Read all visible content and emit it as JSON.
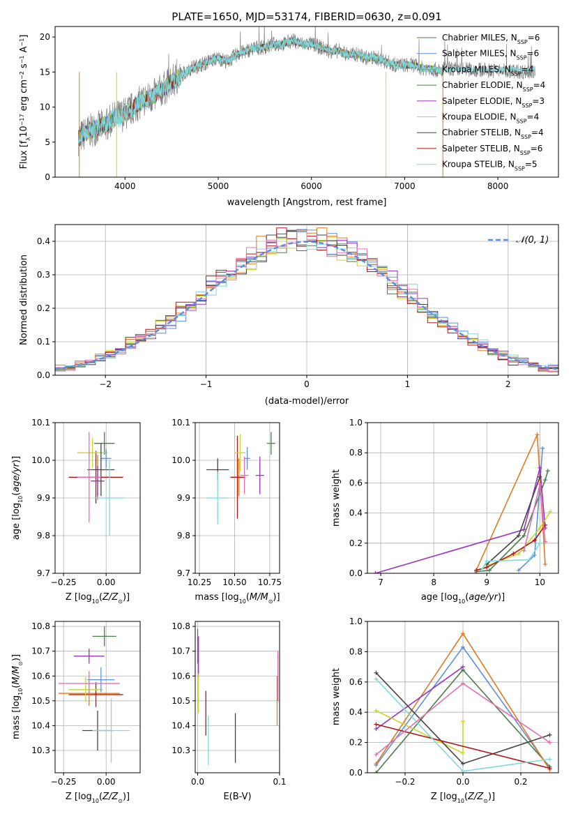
{
  "chart_data": [
    {
      "type": "line",
      "title": "PLATE=1650, MJD=53174, FIBERID=0630, z=0.091",
      "xlabel": "wavelength [Angstrom, rest frame]",
      "ylabel": "Flux [fλ10⁻¹⁷ erg cm⁻² s⁻¹ A⁻¹]",
      "xlim": [
        3250,
        8650
      ],
      "ylim": [
        0,
        21.5
      ],
      "xticks": [
        "4000",
        "5000",
        "6000",
        "7000",
        "8000"
      ],
      "yticks": [
        "0",
        "5",
        "10",
        "15",
        "20"
      ],
      "legend_placement": "top-right",
      "series": [
        {
          "name": "Chabrier MILES, N_SSP=6",
          "color": "#4a7d4a"
        },
        {
          "name": "Salpeter MILES, N_SSP=6",
          "color": "#5b8fe0"
        },
        {
          "name": "Kroupa MILES, N_SSP=4",
          "color": "#e07a20"
        },
        {
          "name": "Chabrier ELODIE, N_SSP=4",
          "color": "#4a7d4a"
        },
        {
          "name": "Salpeter ELODIE, N_SSP=3",
          "color": "#9b30c0"
        },
        {
          "name": "Kroupa ELODIE, N_SSP=4",
          "color": "#c8d62a"
        },
        {
          "name": "Chabrier STELIB, N_SSP=4",
          "color": "#444444"
        },
        {
          "name": "Salpeter STELIB, N_SSP=6",
          "color": "#b01515"
        },
        {
          "name": "Kroupa STELIB, N_SSP=5",
          "color": "#80d8d8"
        }
      ],
      "data_spectrum_x": [
        3500,
        3600,
        3700,
        3800,
        3900,
        4000,
        4100,
        4200,
        4300,
        4400,
        4500,
        4600,
        4700,
        4800,
        4900,
        5000,
        5100,
        5200,
        5300,
        5400,
        5500,
        5600,
        5700,
        5800,
        5900,
        6000,
        6100,
        6200,
        6300,
        6400,
        6500,
        6600,
        6700,
        6800,
        6900,
        7000,
        7100,
        7200,
        7300,
        7400
      ],
      "data_spectrum_y": [
        5.5,
        6.5,
        7,
        7.5,
        8.5,
        9,
        10,
        11,
        11.5,
        12.5,
        13.5,
        14.5,
        15.5,
        16,
        16.5,
        17,
        16.5,
        17.5,
        18,
        18.5,
        18.5,
        19,
        19,
        19.5,
        19,
        19,
        18.5,
        18,
        18,
        17.5,
        17.5,
        17,
        17,
        16.5,
        16,
        16,
        16,
        15.5,
        15.5,
        15
      ]
    },
    {
      "type": "histogram",
      "xlabel": "(data-model)/error",
      "ylabel": "Normed distribution",
      "xlim": [
        -2.5,
        2.5
      ],
      "ylim": [
        0,
        0.45
      ],
      "xticks": [
        "−2",
        "−1",
        "0",
        "1",
        "2"
      ],
      "yticks": [
        "0.0",
        "0.1",
        "0.2",
        "0.3",
        "0.4"
      ],
      "legend": "𝒩(0, 1)",
      "legend_placement": "top-right",
      "bin_width": 0.1
    },
    {
      "type": "scatter",
      "xlabel": "Z [log₁₀(Z/Z⊙)]",
      "ylabel": "age  [log₁₀(age/yr)]",
      "xlim": [
        -0.3,
        0.2
      ],
      "ylim": [
        9.7,
        10.1
      ],
      "xticks": [
        "−0.25",
        "0.00"
      ],
      "yticks": [
        "9.7",
        "9.8",
        "9.9",
        "10.0",
        "10.1"
      ],
      "points": [
        {
          "x": -0.01,
          "y": 10.045,
          "xerr": 0.06,
          "yerr": 0.03,
          "color": "#4a7d4a"
        },
        {
          "x": -0.05,
          "y": 9.955,
          "xerr": 0.09,
          "yerr": 0.06,
          "color": "#e07a20"
        },
        {
          "x": -0.06,
          "y": 9.955,
          "xerr": 0.16,
          "yerr": 0.07,
          "color": "#b01515"
        },
        {
          "x": -0.08,
          "y": 10.02,
          "xerr": 0.09,
          "yerr": 0.04,
          "color": "#c8d62a"
        },
        {
          "x": -0.05,
          "y": 9.945,
          "xerr": 0.04,
          "yerr": 0.04,
          "color": "#9b30c0"
        },
        {
          "x": 0.0,
          "y": 10.005,
          "xerr": 0.03,
          "yerr": 0.025,
          "color": "#5b8fe0"
        },
        {
          "x": -0.03,
          "y": 9.975,
          "xerr": 0.08,
          "yerr": 0.07,
          "color": "#444444"
        },
        {
          "x": 0.02,
          "y": 9.9,
          "xerr": 0.09,
          "yerr": 0.1,
          "color": "#80d8d8"
        },
        {
          "x": -0.1,
          "y": 9.955,
          "xerr": 0.07,
          "yerr": 0.12,
          "color": "#e46fb0"
        }
      ]
    },
    {
      "type": "scatter",
      "xlabel": "mass [log₁₀(M/M⊙)]",
      "xlim": [
        10.22,
        10.82
      ],
      "ylim": [
        9.7,
        10.1
      ],
      "xticks": [
        "10.25",
        "10.50",
        "10.75"
      ],
      "yticks": [
        "9.7",
        "9.8",
        "9.9",
        "10.0",
        "10.1"
      ],
      "points": [
        {
          "x": 10.76,
          "y": 10.045,
          "xerr": 0.03,
          "yerr": 0.03,
          "color": "#4a7d4a"
        },
        {
          "x": 10.53,
          "y": 9.955,
          "xerr": 0.05,
          "yerr": 0.05,
          "color": "#e07a20"
        },
        {
          "x": 10.52,
          "y": 9.955,
          "xerr": 0.05,
          "yerr": 0.11,
          "color": "#b01515"
        },
        {
          "x": 10.54,
          "y": 10.02,
          "xerr": 0.04,
          "yerr": 0.05,
          "color": "#c8d62a"
        },
        {
          "x": 10.68,
          "y": 9.96,
          "xerr": 0.03,
          "yerr": 0.05,
          "color": "#9b30c0"
        },
        {
          "x": 10.59,
          "y": 10.005,
          "xerr": 0.02,
          "yerr": 0.03,
          "color": "#5b8fe0"
        },
        {
          "x": 10.38,
          "y": 9.975,
          "xerr": 0.08,
          "yerr": 0.03,
          "color": "#444444"
        },
        {
          "x": 10.38,
          "y": 9.9,
          "xerr": 0.08,
          "yerr": 0.07,
          "color": "#80d8d8"
        },
        {
          "x": 10.57,
          "y": 9.96,
          "xerr": 0.03,
          "yerr": 0.05,
          "color": "#e46fb0"
        }
      ]
    },
    {
      "type": "line",
      "xlabel": "age  [log₁₀(age/yr)]",
      "ylabel": "mass weight",
      "xlim": [
        6.75,
        10.35
      ],
      "ylim": [
        0,
        1
      ],
      "xticks": [
        "7",
        "8",
        "9",
        "10"
      ],
      "yticks": [
        "0.0",
        "0.2",
        "0.4",
        "0.6",
        "0.8",
        "1.0"
      ],
      "series": [
        {
          "x": [
            8.8,
            9.05,
            9.7,
            10.1,
            10.15
          ],
          "y": [
            0.01,
            0.02,
            0.25,
            0.62,
            0.68
          ],
          "color": "#4a7d4a"
        },
        {
          "x": [
            9.6,
            9.9,
            10.05
          ],
          "y": [
            0.02,
            0.12,
            0.83
          ],
          "color": "#5b8fe0"
        },
        {
          "x": [
            8.8,
            9.95,
            10.1
          ],
          "y": [
            0.02,
            0.92,
            0.06
          ],
          "color": "#e07a20"
        },
        {
          "x": [
            6.9,
            9.7,
            10.0,
            10.1
          ],
          "y": [
            0.0,
            0.29,
            0.7,
            0.3
          ],
          "color": "#9b30c0"
        },
        {
          "x": [
            9.0,
            9.6,
            10.0,
            10.2
          ],
          "y": [
            0.05,
            0.13,
            0.3,
            0.41
          ],
          "color": "#c8d62a"
        },
        {
          "x": [
            9.0,
            9.6,
            10.0
          ],
          "y": [
            0.06,
            0.25,
            0.64
          ],
          "color": "#444444"
        },
        {
          "x": [
            8.8,
            9.0,
            9.5,
            9.9,
            10.1
          ],
          "y": [
            0.02,
            0.04,
            0.13,
            0.22,
            0.32
          ],
          "color": "#b01515"
        },
        {
          "x": [
            8.9,
            9.0,
            9.8,
            10.0
          ],
          "y": [
            0.02,
            0.08,
            0.09,
            0.2
          ],
          "color": "#80d8d8"
        },
        {
          "x": [
            9.7,
            10.0,
            10.1
          ],
          "y": [
            0.15,
            0.59,
            0.21
          ],
          "color": "#e46fb0"
        }
      ]
    },
    {
      "type": "scatter",
      "xlabel": "Z [log₁₀(Z/Z⊙)]",
      "ylabel": "mass [log₁₀(M/M⊙)]",
      "xlim": [
        -0.3,
        0.2
      ],
      "ylim": [
        10.21,
        10.82
      ],
      "xticks": [
        "−0.25",
        "0.00"
      ],
      "yticks": [
        "10.3",
        "10.4",
        "10.5",
        "10.6",
        "10.7",
        "10.8"
      ],
      "points": [
        {
          "x": -0.01,
          "y": 10.76,
          "xerr": 0.07,
          "yerr": 0.04,
          "color": "#4a7d4a"
        },
        {
          "x": -0.1,
          "y": 10.68,
          "xerr": 0.09,
          "yerr": 0.03,
          "color": "#9b30c0"
        },
        {
          "x": -0.1,
          "y": 10.53,
          "xerr": 0.18,
          "yerr": 0.05,
          "color": "#e07a20"
        },
        {
          "x": -0.06,
          "y": 10.525,
          "xerr": 0.16,
          "yerr": 0.05,
          "color": "#b01515"
        },
        {
          "x": -0.12,
          "y": 10.545,
          "xerr": 0.1,
          "yerr": 0.05,
          "color": "#c8d62a"
        },
        {
          "x": -0.03,
          "y": 10.585,
          "xerr": 0.08,
          "yerr": 0.05,
          "color": "#5b8fe0"
        },
        {
          "x": -0.1,
          "y": 10.57,
          "xerr": 0.18,
          "yerr": 0.05,
          "color": "#e46fb0"
        },
        {
          "x": -0.05,
          "y": 10.38,
          "xerr": 0.09,
          "yerr": 0.08,
          "color": "#444444"
        },
        {
          "x": 0.03,
          "y": 10.38,
          "xerr": 0.11,
          "yerr": 0.13,
          "color": "#80d8d8"
        }
      ]
    },
    {
      "type": "scatter",
      "xlabel": "E(B-V)",
      "xlim": [
        -0.003,
        0.1
      ],
      "ylim": [
        10.21,
        10.82
      ],
      "xticks": [
        "0.0",
        "0.1"
      ],
      "yticks": [
        "10.3",
        "10.4",
        "10.5",
        "10.6",
        "10.7",
        "10.8"
      ],
      "points": [
        {
          "x": 0.0,
          "y": 10.72,
          "yerr": 0.07,
          "color": "#4a7d4a"
        },
        {
          "x": 0.001,
          "y": 10.68,
          "yerr": 0.08,
          "color": "#9b30c0"
        },
        {
          "x": 0.001,
          "y": 10.53,
          "yerr": 0.08,
          "color": "#c8d62a"
        },
        {
          "x": 0.01,
          "y": 10.45,
          "yerr": 0.09,
          "color": "#b01515"
        },
        {
          "x": 0.013,
          "y": 10.34,
          "yerr": 0.1,
          "color": "#80d8d8"
        },
        {
          "x": 0.046,
          "y": 10.35,
          "yerr": 0.1,
          "color": "#444444"
        },
        {
          "x": 0.097,
          "y": 10.5,
          "yerr": 0.1,
          "color": "#e07a20"
        },
        {
          "x": 0.098,
          "y": 10.6,
          "yerr": 0.1,
          "color": "#e46fb0"
        }
      ]
    },
    {
      "type": "line",
      "xlabel": "Z [log₁₀(Z/Z⊙)]",
      "ylabel": "mass weight",
      "xlim": [
        -0.33,
        0.33
      ],
      "ylim": [
        0,
        1
      ],
      "xticks": [
        "−0.2",
        "0.0",
        "0.2"
      ],
      "yticks": [
        "0.0",
        "0.2",
        "0.4",
        "0.6",
        "0.8",
        "1.0"
      ],
      "series": [
        {
          "x": [
            -0.3,
            0.0,
            0.3
          ],
          "y": [
            0.0,
            0.68,
            0.04
          ],
          "color": "#4a7d4a"
        },
        {
          "x": [
            -0.3,
            0.0,
            0.3
          ],
          "y": [
            0.05,
            0.83,
            0.03
          ],
          "color": "#5b8fe0"
        },
        {
          "x": [
            -0.3,
            0.0,
            0.3
          ],
          "y": [
            0.06,
            0.92,
            0.02
          ],
          "color": "#e07a20"
        },
        {
          "x": [
            -0.3,
            0.0
          ],
          "y": [
            0.29,
            0.7
          ],
          "color": "#9b30c0"
        },
        {
          "x": [
            -0.3,
            0.0,
            0.0
          ],
          "y": [
            0.41,
            0.13,
            0.34
          ],
          "color": "#c8d62a"
        },
        {
          "x": [
            -0.3,
            0.0,
            0.3
          ],
          "y": [
            0.66,
            0.06,
            0.25
          ],
          "color": "#444444"
        },
        {
          "x": [
            -0.3,
            0.3
          ],
          "y": [
            0.32,
            0.03
          ],
          "color": "#b01515"
        },
        {
          "x": [
            -0.3,
            0.0,
            0.3
          ],
          "y": [
            0.62,
            0.01,
            0.09
          ],
          "color": "#80d8d8"
        },
        {
          "x": [
            -0.3,
            0.0,
            0.3
          ],
          "y": [
            0.12,
            0.59,
            0.2
          ],
          "color": "#e46fb0"
        }
      ]
    }
  ]
}
